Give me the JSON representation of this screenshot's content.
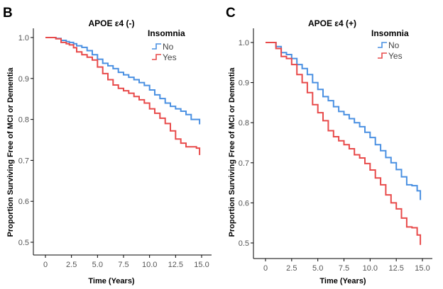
{
  "chart_data": [
    {
      "type": "line",
      "panel": "B",
      "title": "APOE ε4 (-)",
      "xlabel": "Time (Years)",
      "ylabel": "Proportion Surviving Free of MCI or Dementia",
      "xlim": [
        0,
        15
      ],
      "ylim": [
        0.5,
        1.0
      ],
      "xticks": [
        0,
        2.5,
        5.0,
        7.5,
        10.0,
        12.5,
        15.0
      ],
      "xtick_labels": [
        "0",
        "2.5",
        "5.0",
        "7.5",
        "10.0",
        "12.5",
        "15.0"
      ],
      "yticks": [
        0.5,
        0.6,
        0.7,
        0.8,
        0.9,
        1.0
      ],
      "ytick_labels": [
        "0.5",
        "0.6",
        "0.7",
        "0.8",
        "0.9",
        "1.0"
      ],
      "grid": false,
      "legend": {
        "title": "Insomnia",
        "position": "top-right"
      },
      "series": [
        {
          "name": "No",
          "color": "#4a90e2",
          "x": [
            0,
            0.5,
            1.0,
            1.5,
            2.0,
            2.3,
            2.7,
            3.0,
            3.5,
            4.0,
            4.5,
            5.0,
            5.5,
            6.0,
            6.5,
            7.0,
            7.5,
            8.0,
            8.5,
            9.0,
            9.5,
            10.0,
            10.5,
            11.0,
            11.5,
            12.0,
            12.5,
            13.0,
            13.5,
            14.0,
            14.5,
            14.8
          ],
          "y": [
            1.0,
            1.0,
            0.998,
            0.993,
            0.99,
            0.988,
            0.985,
            0.98,
            0.976,
            0.968,
            0.958,
            0.947,
            0.937,
            0.931,
            0.924,
            0.915,
            0.909,
            0.903,
            0.897,
            0.89,
            0.883,
            0.872,
            0.86,
            0.851,
            0.84,
            0.832,
            0.826,
            0.82,
            0.812,
            0.8,
            0.8,
            0.788
          ]
        },
        {
          "name": "Yes",
          "color": "#e84a4a",
          "x": [
            0,
            0.5,
            1.0,
            1.5,
            2.0,
            2.3,
            2.7,
            3.0,
            3.5,
            4.0,
            4.5,
            5.0,
            5.5,
            6.0,
            6.5,
            7.0,
            7.5,
            8.0,
            8.5,
            9.0,
            9.5,
            10.0,
            10.5,
            11.0,
            11.5,
            12.0,
            12.5,
            13.0,
            13.5,
            14.0,
            14.5,
            14.8
          ],
          "y": [
            1.0,
            1.0,
            0.997,
            0.988,
            0.985,
            0.982,
            0.975,
            0.965,
            0.958,
            0.952,
            0.945,
            0.928,
            0.912,
            0.897,
            0.884,
            0.876,
            0.87,
            0.864,
            0.856,
            0.848,
            0.84,
            0.826,
            0.815,
            0.803,
            0.79,
            0.772,
            0.752,
            0.742,
            0.733,
            0.733,
            0.73,
            0.713
          ]
        }
      ]
    },
    {
      "type": "line",
      "panel": "C",
      "title": "APOE ε4 (+)",
      "xlabel": "Time (Years)",
      "ylabel": "Proportion Surviving Free of MCI or Dementia",
      "xlim": [
        0,
        15
      ],
      "ylim": [
        0.5,
        1.0
      ],
      "xticks": [
        0,
        2.5,
        5.0,
        7.5,
        10.0,
        12.5,
        15.0
      ],
      "xtick_labels": [
        "0",
        "2.5",
        "5.0",
        "7.5",
        "10.0",
        "12.5",
        "15.0"
      ],
      "yticks": [
        0.5,
        0.6,
        0.7,
        0.8,
        0.9,
        1.0
      ],
      "ytick_labels": [
        "0.5",
        "0.6",
        "0.7",
        "0.8",
        "0.9",
        "1.0"
      ],
      "grid": false,
      "legend": {
        "title": "Insomnia",
        "position": "top-right"
      },
      "series": [
        {
          "name": "No",
          "color": "#4a90e2",
          "x": [
            0,
            0.5,
            1.0,
            1.5,
            2.0,
            2.5,
            3.0,
            3.5,
            4.0,
            4.5,
            5.0,
            5.5,
            6.0,
            6.5,
            7.0,
            7.5,
            8.0,
            8.5,
            9.0,
            9.5,
            10.0,
            10.5,
            11.0,
            11.5,
            12.0,
            12.5,
            13.0,
            13.5,
            14.0,
            14.5,
            14.8
          ],
          "y": [
            1.0,
            1.0,
            0.99,
            0.975,
            0.97,
            0.96,
            0.945,
            0.935,
            0.92,
            0.9,
            0.883,
            0.865,
            0.855,
            0.84,
            0.828,
            0.82,
            0.81,
            0.8,
            0.79,
            0.776,
            0.763,
            0.745,
            0.73,
            0.713,
            0.7,
            0.683,
            0.665,
            0.645,
            0.643,
            0.63,
            0.607
          ]
        },
        {
          "name": "Yes",
          "color": "#e84a4a",
          "x": [
            0,
            0.5,
            1.0,
            1.5,
            2.0,
            2.5,
            3.0,
            3.5,
            4.0,
            4.5,
            5.0,
            5.5,
            6.0,
            6.5,
            7.0,
            7.5,
            8.0,
            8.5,
            9.0,
            9.5,
            10.0,
            10.5,
            11.0,
            11.5,
            12.0,
            12.5,
            13.0,
            13.5,
            14.0,
            14.5,
            14.8
          ],
          "y": [
            1.0,
            1.0,
            0.985,
            0.965,
            0.96,
            0.945,
            0.92,
            0.9,
            0.875,
            0.845,
            0.825,
            0.805,
            0.78,
            0.765,
            0.755,
            0.745,
            0.735,
            0.72,
            0.712,
            0.698,
            0.682,
            0.662,
            0.645,
            0.62,
            0.6,
            0.585,
            0.562,
            0.54,
            0.538,
            0.52,
            0.495
          ]
        }
      ]
    }
  ]
}
